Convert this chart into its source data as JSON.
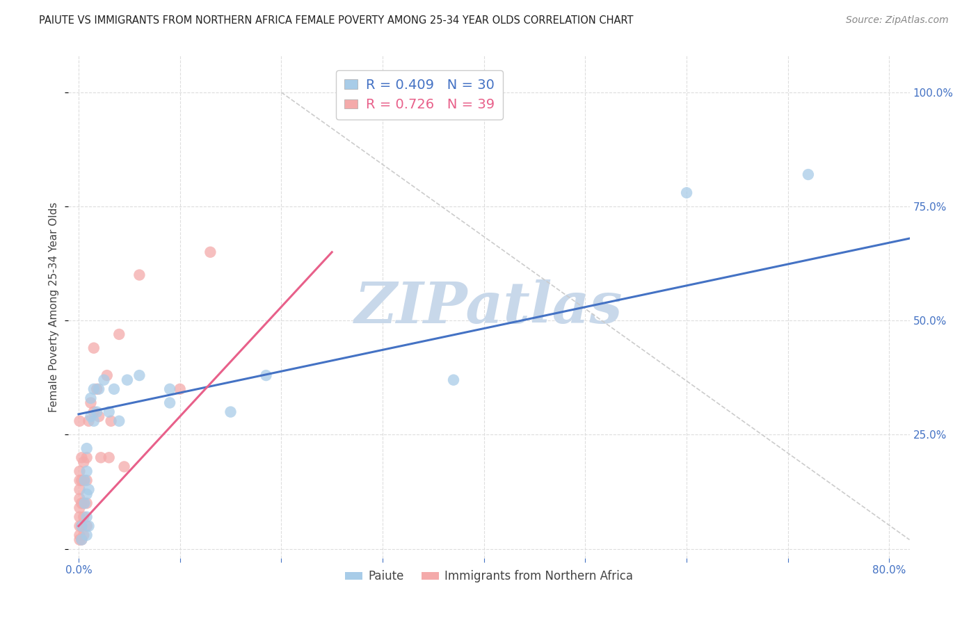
{
  "title": "PAIUTE VS IMMIGRANTS FROM NORTHERN AFRICA FEMALE POVERTY AMONG 25-34 YEAR OLDS CORRELATION CHART",
  "source": "Source: ZipAtlas.com",
  "ylabel": "Female Poverty Among 25-34 Year Olds",
  "xlim": [
    -0.01,
    0.82
  ],
  "ylim": [
    -0.02,
    1.08
  ],
  "x_ticks": [
    0.0,
    0.1,
    0.2,
    0.3,
    0.4,
    0.5,
    0.6,
    0.7,
    0.8
  ],
  "y_ticks": [
    0.0,
    0.25,
    0.5,
    0.75,
    1.0
  ],
  "legend_labels": [
    "Paiute",
    "Immigrants from Northern Africa"
  ],
  "paiute_R": 0.409,
  "paiute_N": 30,
  "immig_R": 0.726,
  "immig_N": 39,
  "paiute_color": "#a8cce8",
  "immig_color": "#f4aaaa",
  "paiute_line_color": "#4472c4",
  "immig_line_color": "#e8608a",
  "diagonal_color": "#cccccc",
  "background_color": "#ffffff",
  "grid_color": "#dddddd",
  "watermark": "ZIPatlas",
  "watermark_color": "#c8d8ea",
  "paiute_x": [
    0.003,
    0.003,
    0.006,
    0.006,
    0.008,
    0.008,
    0.008,
    0.008,
    0.008,
    0.01,
    0.01,
    0.012,
    0.012,
    0.015,
    0.015,
    0.018,
    0.02,
    0.025,
    0.03,
    0.035,
    0.04,
    0.048,
    0.06,
    0.09,
    0.09,
    0.15,
    0.185,
    0.37,
    0.6,
    0.72
  ],
  "paiute_y": [
    0.02,
    0.05,
    0.1,
    0.15,
    0.03,
    0.07,
    0.12,
    0.17,
    0.22,
    0.05,
    0.13,
    0.29,
    0.33,
    0.28,
    0.35,
    0.3,
    0.35,
    0.37,
    0.3,
    0.35,
    0.28,
    0.37,
    0.38,
    0.32,
    0.35,
    0.3,
    0.38,
    0.37,
    0.78,
    0.82
  ],
  "immig_x": [
    0.001,
    0.001,
    0.001,
    0.001,
    0.001,
    0.001,
    0.001,
    0.001,
    0.001,
    0.001,
    0.003,
    0.003,
    0.003,
    0.003,
    0.003,
    0.005,
    0.005,
    0.005,
    0.005,
    0.005,
    0.008,
    0.008,
    0.008,
    0.008,
    0.01,
    0.012,
    0.015,
    0.015,
    0.018,
    0.02,
    0.022,
    0.028,
    0.03,
    0.032,
    0.04,
    0.045,
    0.06,
    0.1,
    0.13
  ],
  "immig_y": [
    0.02,
    0.03,
    0.05,
    0.07,
    0.09,
    0.11,
    0.13,
    0.15,
    0.17,
    0.28,
    0.02,
    0.05,
    0.1,
    0.15,
    0.2,
    0.03,
    0.07,
    0.1,
    0.15,
    0.19,
    0.05,
    0.1,
    0.15,
    0.2,
    0.28,
    0.32,
    0.3,
    0.44,
    0.35,
    0.29,
    0.2,
    0.38,
    0.2,
    0.28,
    0.47,
    0.18,
    0.6,
    0.35,
    0.65
  ],
  "paiute_line_x": [
    0.0,
    0.82
  ],
  "paiute_line_y": [
    0.295,
    0.68
  ],
  "immig_line_x": [
    0.0,
    0.25
  ],
  "immig_line_y": [
    0.05,
    0.65
  ],
  "diag_line_x": [
    0.2,
    0.82
  ],
  "diag_line_y": [
    1.0,
    0.02
  ]
}
